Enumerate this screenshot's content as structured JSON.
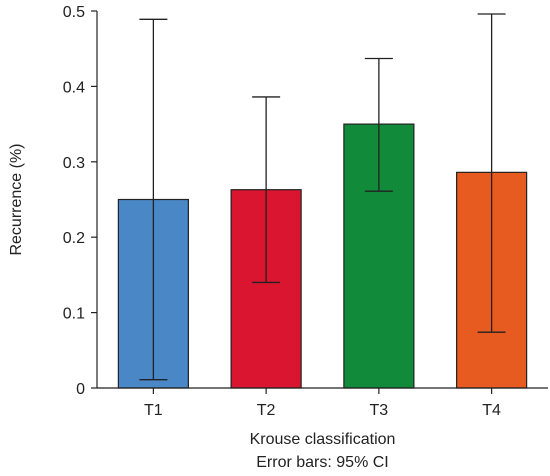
{
  "chart_data": {
    "type": "bar",
    "categories": [
      "T1",
      "T2",
      "T3",
      "T4"
    ],
    "values": [
      0.25,
      0.263,
      0.35,
      0.286
    ],
    "ci_lower": [
      0.011,
      0.14,
      0.261,
      0.074
    ],
    "ci_upper": [
      0.489,
      0.386,
      0.437,
      0.496
    ],
    "colors": [
      "#4a87c6",
      "#d9152f",
      "#118a3a",
      "#e85b20"
    ],
    "title": "",
    "xlabel": "Krouse classification",
    "ylabel": "Recurrence (%)",
    "note": "Error bars: 95% CI",
    "ylim": [
      0,
      0.5
    ],
    "yticks": [
      0,
      0.1,
      0.2,
      0.3,
      0.4,
      0.5
    ],
    "ytick_labels": [
      "0",
      "0.1",
      "0.2",
      "0.3",
      "0.4",
      "0.5"
    ],
    "grid": false,
    "legend": "none"
  }
}
